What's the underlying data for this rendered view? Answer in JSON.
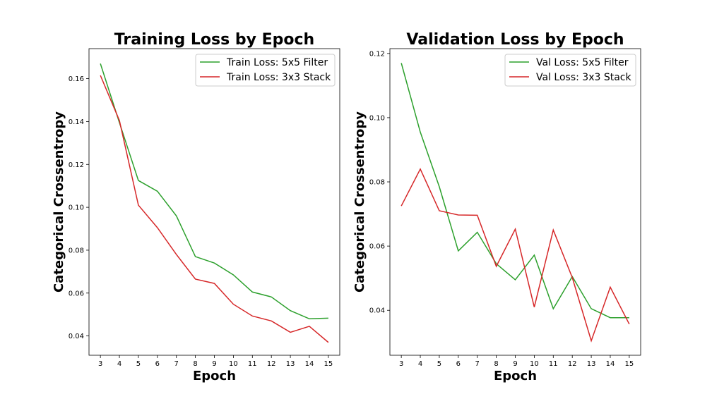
{
  "chart_data": [
    {
      "type": "line",
      "title": "Training Loss by Epoch",
      "xlabel": "Epoch",
      "ylabel": "Categorical Crossentropy",
      "x": [
        3,
        4,
        5,
        6,
        7,
        8,
        9,
        10,
        11,
        12,
        13,
        14,
        15
      ],
      "xlim": [
        2.4,
        15.6
      ],
      "ylim": [
        0.031,
        0.174
      ],
      "yticks": [
        0.04,
        0.06,
        0.08,
        0.1,
        0.12,
        0.14,
        0.16
      ],
      "ytick_labels": [
        "0.04",
        "0.06",
        "0.08",
        "0.10",
        "0.12",
        "0.14",
        "0.16"
      ],
      "xtick_labels": [
        "3",
        "4",
        "5",
        "6",
        "7",
        "8",
        "9",
        "10",
        "11",
        "12",
        "13",
        "14",
        "15"
      ],
      "grid": false,
      "legend_position": "top-right",
      "series": [
        {
          "name": "Train Loss: 5x5 Filter",
          "color": "#2ca02c",
          "values": [
            0.167,
            0.1395,
            0.1125,
            0.1075,
            0.096,
            0.077,
            0.074,
            0.0685,
            0.0605,
            0.0582,
            0.0518,
            0.048,
            0.0483
          ]
        },
        {
          "name": "Train Loss: 3x3 Stack",
          "color": "#d62728",
          "values": [
            0.1615,
            0.1405,
            0.101,
            0.0905,
            0.078,
            0.0665,
            0.0645,
            0.0548,
            0.0493,
            0.047,
            0.0417,
            0.0445,
            0.037
          ]
        }
      ]
    },
    {
      "type": "line",
      "title": "Validation Loss by Epoch",
      "xlabel": "Epoch",
      "ylabel": "Categorical Crossentropy",
      "x": [
        3,
        4,
        5,
        6,
        7,
        8,
        9,
        10,
        11,
        12,
        13,
        14,
        15
      ],
      "xlim": [
        2.4,
        15.6
      ],
      "ylim": [
        0.026,
        0.1215
      ],
      "yticks": [
        0.04,
        0.06,
        0.08,
        0.1,
        0.12
      ],
      "ytick_labels": [
        "0.04",
        "0.06",
        "0.08",
        "0.10",
        "0.12"
      ],
      "xtick_labels": [
        "3",
        "4",
        "5",
        "6",
        "7",
        "8",
        "9",
        "10",
        "11",
        "12",
        "13",
        "14",
        "15"
      ],
      "grid": false,
      "legend_position": "top-right",
      "series": [
        {
          "name": "Val Loss: 5x5 Filter",
          "color": "#2ca02c",
          "values": [
            0.117,
            0.0955,
            0.0785,
            0.0585,
            0.0643,
            0.0545,
            0.0495,
            0.0572,
            0.0405,
            0.0505,
            0.0405,
            0.0377,
            0.0377
          ]
        },
        {
          "name": "Val Loss: 3x3 Stack",
          "color": "#d62728",
          "values": [
            0.0725,
            0.084,
            0.071,
            0.0697,
            0.0696,
            0.0537,
            0.0653,
            0.041,
            0.065,
            0.0502,
            0.0305,
            0.0472,
            0.0357
          ]
        }
      ]
    }
  ]
}
